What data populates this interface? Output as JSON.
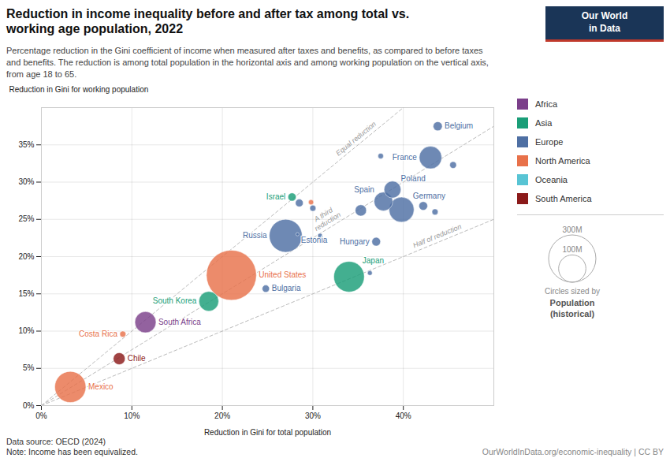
{
  "chart_data": {
    "type": "scatter",
    "title": "Reduction in income inequality before and after tax among total vs.\nworking age population, 2022",
    "subtitle": "Percentage reduction in the Gini coefficient of income when measured after taxes and benefits, as compared to before taxes\nand benefits. The reduction is among total population in the horizontal axis and among working population on the vertical axis,\nfrom age 18 to 65.",
    "xlabel": "Reduction in Gini for total population",
    "ylabel": "Reduction in Gini for working population",
    "source": "Data source: OECD (2024)",
    "note": "Note: Income has been equivalized.",
    "credit": "OurWorldInData.org/economic-inequality | CC BY",
    "points": [
      {
        "name": "Mexico",
        "x": 0.032,
        "y": 0.025,
        "size": 130,
        "region": "North America"
      },
      {
        "name": "Chile",
        "x": 0.086,
        "y": 0.063,
        "size": 19,
        "region": "South America"
      },
      {
        "name": "Costa Rica",
        "x": 0.09,
        "y": 0.096,
        "size": 5,
        "region": "North America"
      },
      {
        "name": "South Africa",
        "x": 0.115,
        "y": 0.112,
        "size": 60,
        "region": "Africa"
      },
      {
        "name": "South Korea",
        "x": 0.185,
        "y": 0.14,
        "size": 52,
        "region": "Asia"
      },
      {
        "name": "United States",
        "x": 0.21,
        "y": 0.175,
        "size": 335,
        "region": "North America"
      },
      {
        "name": "Bulgaria",
        "x": 0.248,
        "y": 0.157,
        "size": 7,
        "region": "Europe"
      },
      {
        "name": "Russia",
        "x": 0.27,
        "y": 0.228,
        "size": 145,
        "region": "Europe"
      },
      {
        "name": "Estonia",
        "x": 0.283,
        "y": 0.23,
        "size": 1.4,
        "region": "Europe"
      },
      {
        "name": "Israel",
        "x": 0.277,
        "y": 0.28,
        "size": 9,
        "region": "Asia"
      },
      {
        "name": "Japan",
        "x": 0.34,
        "y": 0.173,
        "size": 125,
        "region": "Asia"
      },
      {
        "name": "Hungary",
        "x": 0.37,
        "y": 0.22,
        "size": 10,
        "region": "Europe"
      },
      {
        "name": "Spain",
        "x": 0.378,
        "y": 0.274,
        "size": 47,
        "region": "Europe"
      },
      {
        "name": "Germany",
        "x": 0.398,
        "y": 0.263,
        "size": 84,
        "region": "Europe"
      },
      {
        "name": "Poland",
        "x": 0.388,
        "y": 0.29,
        "size": 38,
        "region": "Europe"
      },
      {
        "name": "France",
        "x": 0.43,
        "y": 0.333,
        "size": 68,
        "region": "Europe"
      },
      {
        "name": "Belgium",
        "x": 0.438,
        "y": 0.375,
        "size": 11,
        "region": "Europe"
      },
      {
        "name": null,
        "x": 0.285,
        "y": 0.272,
        "size": 8,
        "region": "Europe"
      },
      {
        "name": null,
        "x": 0.3,
        "y": 0.265,
        "size": 5,
        "region": "Europe"
      },
      {
        "name": null,
        "x": 0.375,
        "y": 0.335,
        "size": 4,
        "region": "Europe"
      },
      {
        "name": null,
        "x": 0.353,
        "y": 0.262,
        "size": 17,
        "region": "Europe"
      },
      {
        "name": null,
        "x": 0.435,
        "y": 0.26,
        "size": 5,
        "region": "Europe"
      },
      {
        "name": null,
        "x": 0.455,
        "y": 0.323,
        "size": 6,
        "region": "Europe"
      },
      {
        "name": null,
        "x": 0.422,
        "y": 0.268,
        "size": 10,
        "region": "Europe"
      },
      {
        "name": null,
        "x": 0.308,
        "y": 0.228,
        "size": 3,
        "region": "Europe"
      },
      {
        "name": null,
        "x": 0.363,
        "y": 0.178,
        "size": 3,
        "region": "Europe"
      },
      {
        "name": null,
        "x": 0.298,
        "y": 0.273,
        "size": 3.5,
        "region": "North America"
      }
    ],
    "series": [
      {
        "name": "Africa",
        "color": "#7b3f8a"
      },
      {
        "name": "Asia",
        "color": "#1a9e78"
      },
      {
        "name": "Europe",
        "color": "#4e6fa3"
      },
      {
        "name": "North America",
        "color": "#e8714a"
      },
      {
        "name": "Oceania",
        "color": "#58c4d4"
      },
      {
        "name": "South America",
        "color": "#8b1a1a"
      }
    ],
    "xlim": [
      0.0,
      0.5
    ],
    "ylim": [
      0.0,
      0.4
    ],
    "xticks": [
      {
        "value": 0.0,
        "label": "0%"
      },
      {
        "value": 0.1,
        "label": "10%"
      },
      {
        "value": 0.2,
        "label": "20%"
      },
      {
        "value": 0.3,
        "label": "30%"
      },
      {
        "value": 0.4,
        "label": "40%"
      }
    ],
    "yticks": [
      {
        "value": 0.0,
        "label": "0%"
      },
      {
        "value": 0.05,
        "label": "5%"
      },
      {
        "value": 0.1,
        "label": "10%"
      },
      {
        "value": 0.15,
        "label": "15%"
      },
      {
        "value": 0.2,
        "label": "20%"
      },
      {
        "value": 0.25,
        "label": "25%"
      },
      {
        "value": 0.3,
        "label": "30%"
      },
      {
        "value": 0.35,
        "label": "35%"
      }
    ],
    "grid": true,
    "legend": "right",
    "reference_lines": [
      {
        "slope": 1.0,
        "label": "Equal reduction"
      },
      {
        "slope": 0.75,
        "label": "A third\nreduction"
      },
      {
        "slope": 0.5,
        "label": "Half of reduction"
      }
    ],
    "size_legend": {
      "title": "Circles sized by",
      "label": "Population\n(historical)",
      "values": [
        {
          "value": 300,
          "label": "300M"
        },
        {
          "value": 100,
          "label": "100M"
        }
      ]
    },
    "logo": {
      "text": "Our World\nin Data",
      "background": "#1a3557",
      "color": "#c0392b"
    }
  }
}
